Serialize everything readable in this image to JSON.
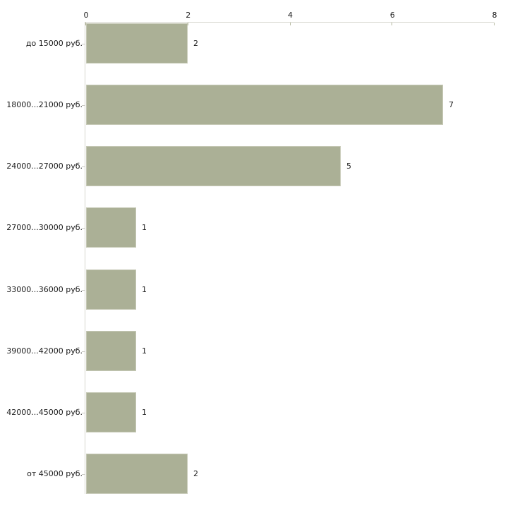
{
  "chart_data": {
    "type": "bar",
    "orientation": "horizontal",
    "title": "",
    "xlabel": "",
    "ylabel": "",
    "categories": [
      "до 15000 руб.",
      "18000...21000 руб.",
      "24000...27000 руб.",
      "27000...30000 руб.",
      "33000...36000 руб.",
      "39000...42000 руб.",
      "42000...45000 руб.",
      "от 45000 руб."
    ],
    "values": [
      2,
      7,
      5,
      1,
      1,
      1,
      1,
      2
    ],
    "value_labels": [
      "2",
      "7",
      "5",
      "1",
      "1",
      "1",
      "1",
      "2"
    ],
    "x_ticks": [
      0,
      2,
      4,
      6,
      8
    ],
    "xlim": [
      0,
      8
    ],
    "grid": false,
    "legend": false,
    "axis_position": "top",
    "colors": {
      "bar_fill": "#abb096",
      "bar_edge": "#c6c9b6",
      "axis_line": "#d6d6ce",
      "axis_tick": "#b0b499",
      "category_tick": "#c9c9c3",
      "text": "#1a1a1a",
      "background": "#ffffff"
    }
  }
}
